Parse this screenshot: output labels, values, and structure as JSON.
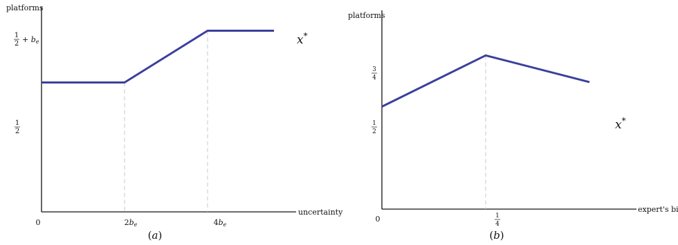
{
  "chart_data": [
    {
      "type": "line",
      "panel_label": "(a)",
      "ylabel": "platforms",
      "xlabel": "uncertainty",
      "origin_label": "0",
      "x_ticks": [
        {
          "value": 2,
          "label": "2b_e"
        },
        {
          "value": 4,
          "label": "4b_e"
        }
      ],
      "y_ticks": [
        {
          "value": 0.5,
          "label": "1/2"
        },
        {
          "value": 0.7,
          "label": "1/2 + b_e"
        }
      ],
      "xlim": [
        0,
        6
      ],
      "ylim": [
        0,
        0.8
      ],
      "series": [
        {
          "name": "x*",
          "x": [
            0,
            2,
            4,
            5.6
          ],
          "y": [
            0.5,
            0.5,
            0.7,
            0.7
          ]
        }
      ],
      "color": "#3b3f9c",
      "guides": "dashed vertical lines at kinks"
    },
    {
      "type": "line",
      "panel_label": "(b)",
      "ylabel": "platforms",
      "xlabel": "expert's bias",
      "origin_label": "0",
      "x_ticks": [
        {
          "value": 0.25,
          "label": "1/4"
        }
      ],
      "y_ticks": [
        {
          "value": 0.5,
          "label": "1/2"
        },
        {
          "value": 0.75,
          "label": "3/4"
        }
      ],
      "xlim": [
        0,
        0.6
      ],
      "ylim": [
        0,
        0.97
      ],
      "series": [
        {
          "name": "x*",
          "x": [
            0,
            0.25,
            0.5
          ],
          "y": [
            0.5,
            0.75,
            0.62
          ]
        }
      ],
      "color": "#3b3f9c",
      "guides": "dashed vertical line at peak"
    }
  ]
}
